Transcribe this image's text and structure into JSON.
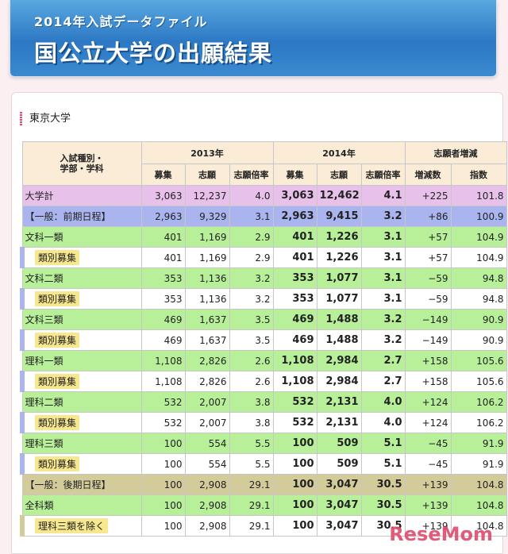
{
  "banner": {
    "subtitle": "2014年入試データファイル",
    "title": "国公立大学の出願結果"
  },
  "section": {
    "title": "東京大学"
  },
  "table": {
    "header": {
      "label_col": "入試種別・\n学部・学科",
      "group_2013": "2013年",
      "group_2014": "2014年",
      "group_change": "志願者増減",
      "sub": [
        "募集",
        "志願",
        "志願倍率",
        "募集",
        "志願",
        "志願倍率",
        "増減数",
        "指数"
      ]
    },
    "rows": [
      {
        "kind": "total",
        "label": "大学計",
        "cells": [
          "3,063",
          "12,237",
          "4.0",
          "3,063",
          "12,462",
          "4.1",
          "+225",
          "101.8"
        ]
      },
      {
        "kind": "main",
        "label": "【一般：前期日程】",
        "cells": [
          "2,963",
          "9,329",
          "3.1",
          "2,963",
          "9,415",
          "3.2",
          "+86",
          "100.9"
        ]
      },
      {
        "kind": "sub",
        "label": "文科一類",
        "cells": [
          "401",
          "1,169",
          "2.9",
          "401",
          "1,226",
          "3.1",
          "+57",
          "104.9"
        ]
      },
      {
        "kind": "leaf",
        "label": "類別募集",
        "cells": [
          "401",
          "1,169",
          "2.9",
          "401",
          "1,226",
          "3.1",
          "+57",
          "104.9"
        ]
      },
      {
        "kind": "sub",
        "label": "文科二類",
        "cells": [
          "353",
          "1,136",
          "3.2",
          "353",
          "1,077",
          "3.1",
          "−59",
          "94.8"
        ]
      },
      {
        "kind": "leaf",
        "label": "類別募集",
        "cells": [
          "353",
          "1,136",
          "3.2",
          "353",
          "1,077",
          "3.1",
          "−59",
          "94.8"
        ]
      },
      {
        "kind": "sub",
        "label": "文科三類",
        "cells": [
          "469",
          "1,637",
          "3.5",
          "469",
          "1,488",
          "3.2",
          "−149",
          "90.9"
        ]
      },
      {
        "kind": "leaf",
        "label": "類別募集",
        "cells": [
          "469",
          "1,637",
          "3.5",
          "469",
          "1,488",
          "3.2",
          "−149",
          "90.9"
        ]
      },
      {
        "kind": "sub",
        "label": "理科一類",
        "cells": [
          "1,108",
          "2,826",
          "2.6",
          "1,108",
          "2,984",
          "2.7",
          "+158",
          "105.6"
        ]
      },
      {
        "kind": "leaf",
        "label": "類別募集",
        "cells": [
          "1,108",
          "2,826",
          "2.6",
          "1,108",
          "2,984",
          "2.7",
          "+158",
          "105.6"
        ]
      },
      {
        "kind": "sub",
        "label": "理科二類",
        "cells": [
          "532",
          "2,007",
          "3.8",
          "532",
          "2,131",
          "4.0",
          "+124",
          "106.2"
        ]
      },
      {
        "kind": "leaf",
        "label": "類別募集",
        "cells": [
          "532",
          "2,007",
          "3.8",
          "532",
          "2,131",
          "4.0",
          "+124",
          "106.2"
        ]
      },
      {
        "kind": "sub",
        "label": "理科三類",
        "cells": [
          "100",
          "554",
          "5.5",
          "100",
          "509",
          "5.1",
          "−45",
          "91.9"
        ]
      },
      {
        "kind": "leaf",
        "label": "類別募集",
        "cells": [
          "100",
          "554",
          "5.5",
          "100",
          "509",
          "5.1",
          "−45",
          "91.9"
        ]
      },
      {
        "kind": "main2",
        "label": "【一般：後期日程】",
        "cells": [
          "100",
          "2,908",
          "29.1",
          "100",
          "3,047",
          "30.5",
          "+139",
          "104.8"
        ]
      },
      {
        "kind": "sub2",
        "label": "全科類",
        "cells": [
          "100",
          "2,908",
          "29.1",
          "100",
          "3,047",
          "30.5",
          "+139",
          "104.8"
        ]
      },
      {
        "kind": "leaf2",
        "label": "理科三類を除く",
        "cells": [
          "100",
          "2,908",
          "29.1",
          "100",
          "3,047",
          "30.5",
          "+139",
          "104.8"
        ]
      }
    ]
  },
  "watermark": "ReseMom"
}
